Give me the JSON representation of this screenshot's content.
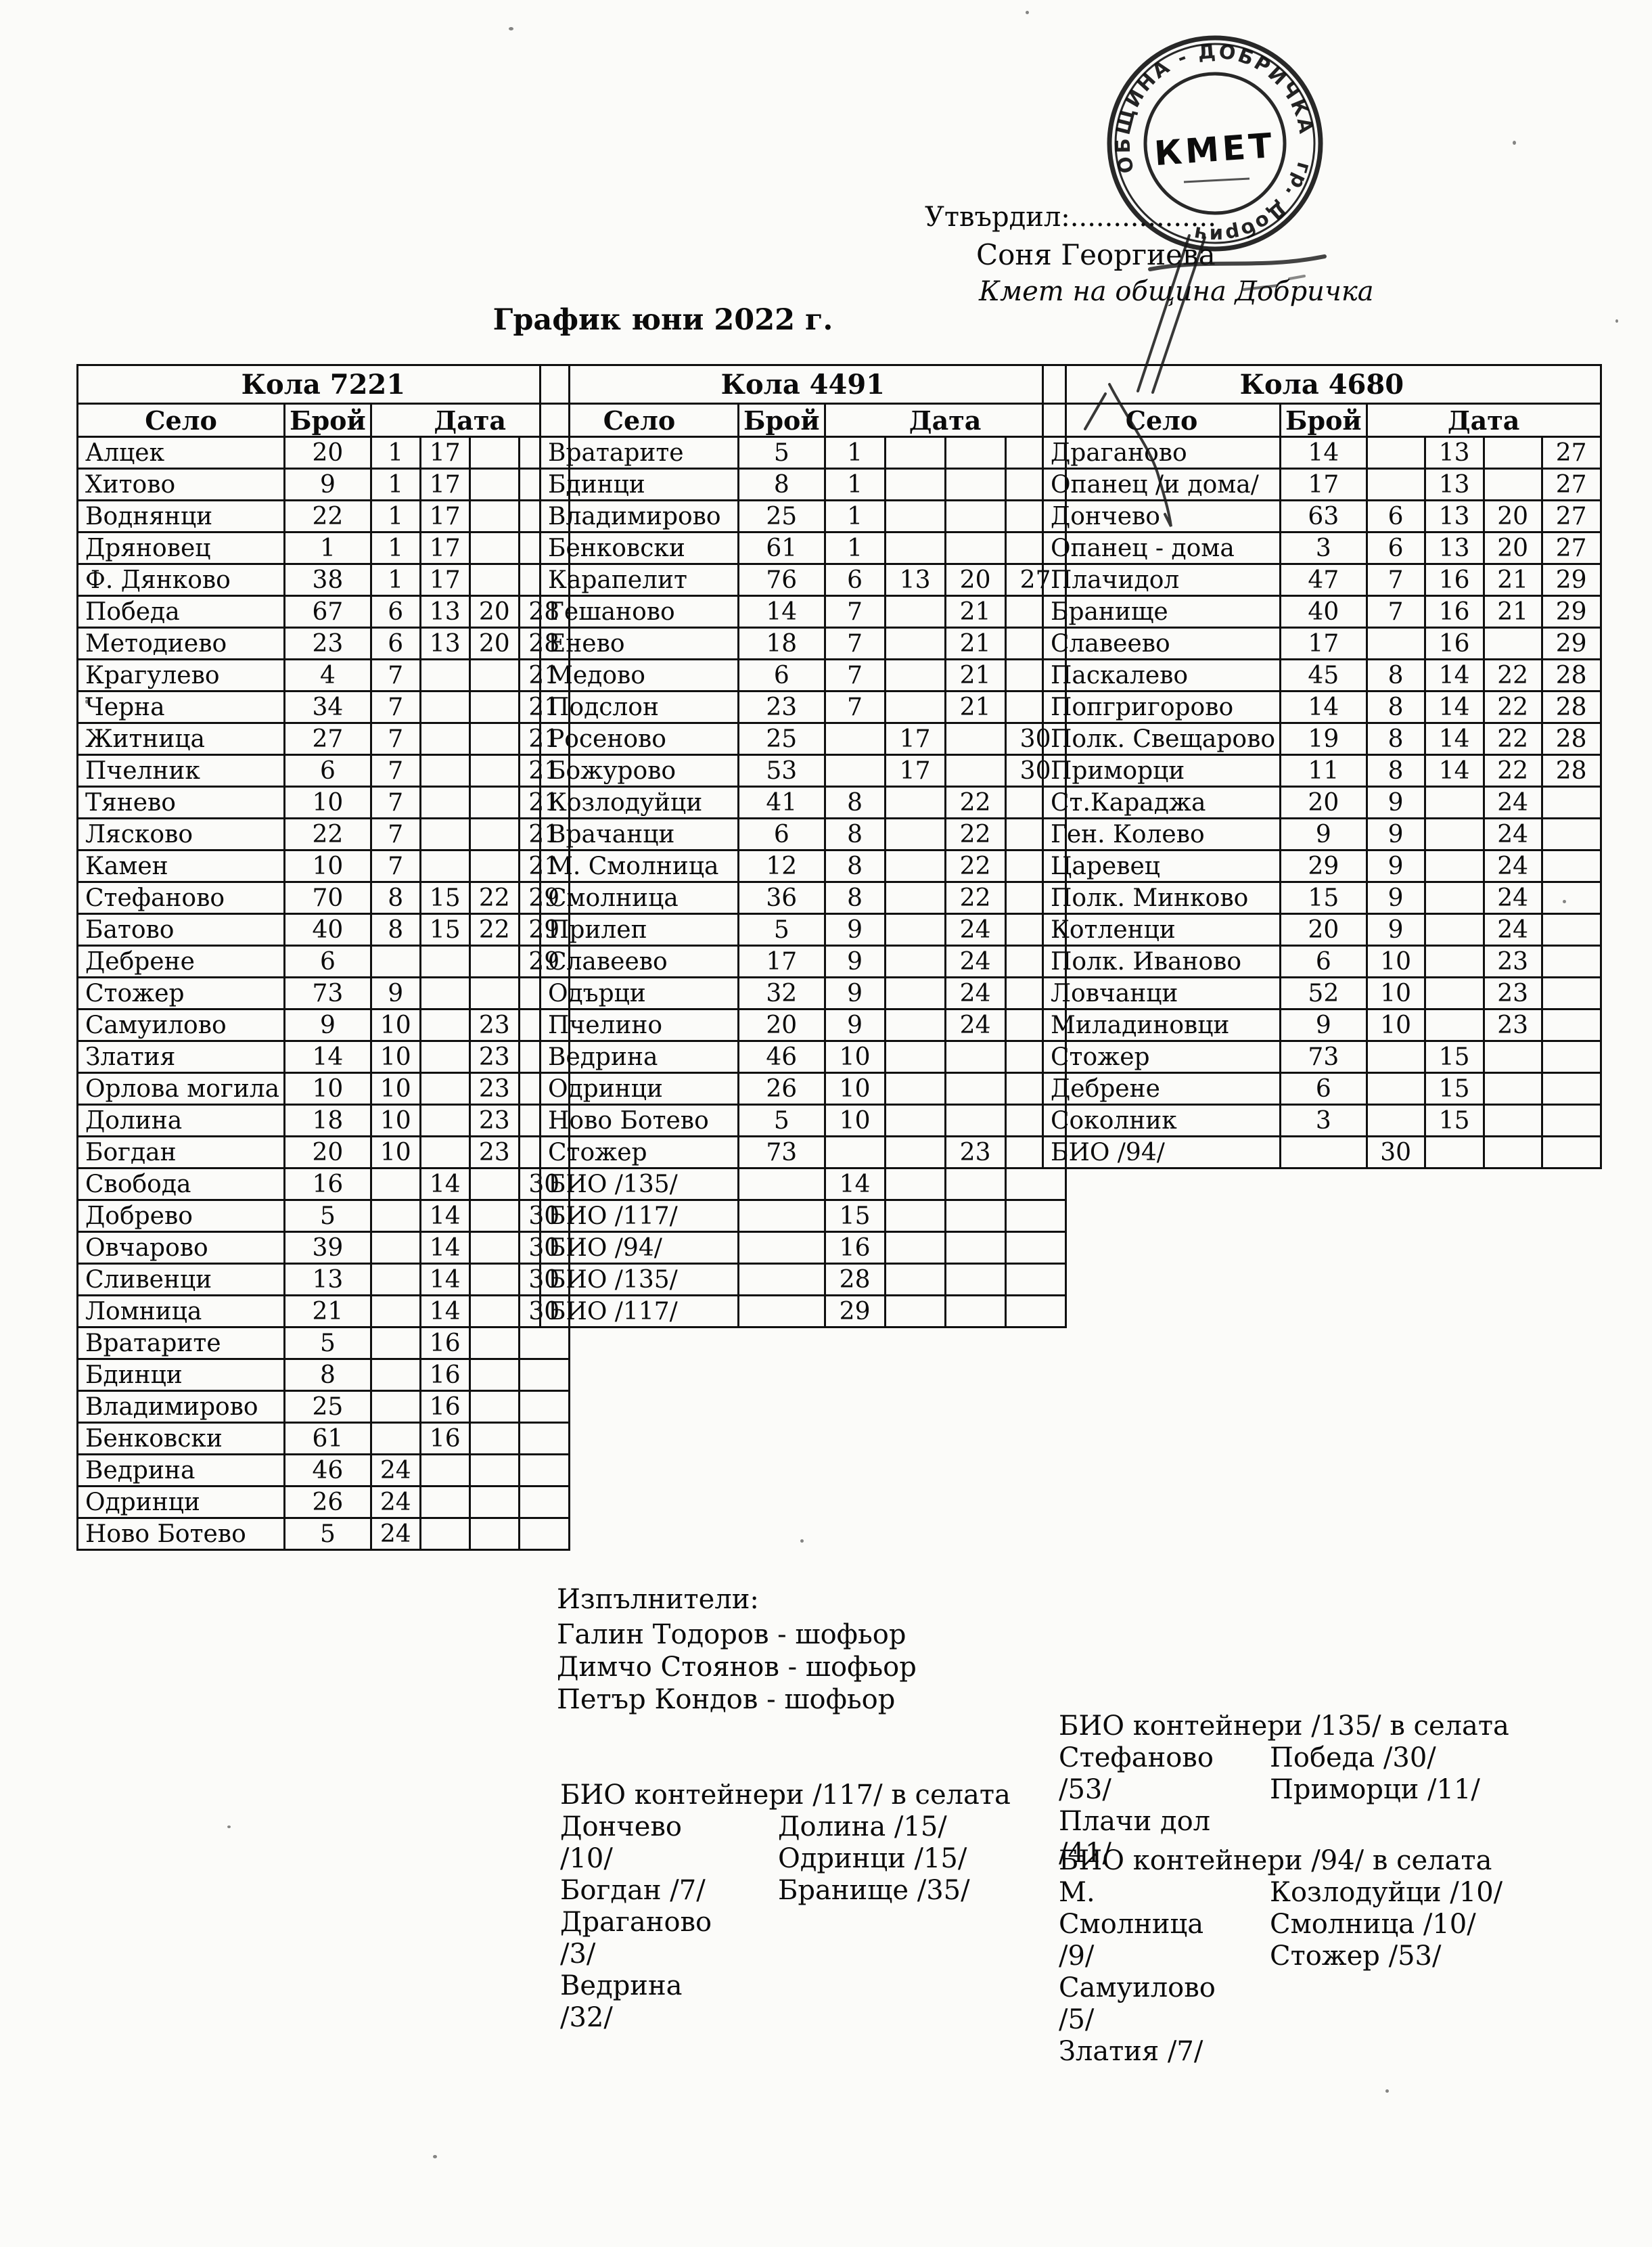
{
  "title": "График юни 2022 г.",
  "approval": {
    "label": "Утвърдил:.................",
    "name": "Соня Георгиева",
    "role": "Кмет  на община Добричка"
  },
  "stamp": {
    "ring_top": "ОБЩИНА - ДОБРИЧКА",
    "ring_bottom": "гр. Добрич",
    "center": "КМЕТ"
  },
  "column_headers": {
    "village": "Село",
    "count": "Брой",
    "date": "Дата"
  },
  "tables": [
    {
      "title": "Кола 7221",
      "rows": [
        {
          "village": "Алцек",
          "count": "20",
          "dates": [
            "1",
            "17",
            "",
            ""
          ]
        },
        {
          "village": "Хитово",
          "count": "9",
          "dates": [
            "1",
            "17",
            "",
            ""
          ]
        },
        {
          "village": "Воднянци",
          "count": "22",
          "dates": [
            "1",
            "17",
            "",
            ""
          ]
        },
        {
          "village": "Дряновец",
          "count": "1",
          "dates": [
            "1",
            "17",
            "",
            ""
          ]
        },
        {
          "village": "Ф. Дянково",
          "count": "38",
          "dates": [
            "1",
            "17",
            "",
            ""
          ]
        },
        {
          "village": "Победа",
          "count": "67",
          "dates": [
            "6",
            "13",
            "20",
            "28"
          ]
        },
        {
          "village": "Методиево",
          "count": "23",
          "dates": [
            "6",
            "13",
            "20",
            "28"
          ]
        },
        {
          "village": "Крагулево",
          "count": "4",
          "dates": [
            "7",
            "",
            "",
            "21"
          ]
        },
        {
          "village": "Черна",
          "count": "34",
          "dates": [
            "7",
            "",
            "",
            "21"
          ]
        },
        {
          "village": "Житница",
          "count": "27",
          "dates": [
            "7",
            "",
            "",
            "21"
          ]
        },
        {
          "village": "Пчелник",
          "count": "6",
          "dates": [
            "7",
            "",
            "",
            "21"
          ]
        },
        {
          "village": "Тянево",
          "count": "10",
          "dates": [
            "7",
            "",
            "",
            "21"
          ]
        },
        {
          "village": "Лясково",
          "count": "22",
          "dates": [
            "7",
            "",
            "",
            "21"
          ]
        },
        {
          "village": "Камен",
          "count": "10",
          "dates": [
            "7",
            "",
            "",
            "21"
          ]
        },
        {
          "village": "Стефаново",
          "count": "70",
          "dates": [
            "8",
            "15",
            "22",
            "29"
          ]
        },
        {
          "village": "Батово",
          "count": "40",
          "dates": [
            "8",
            "15",
            "22",
            "29"
          ]
        },
        {
          "village": "Дебрене",
          "count": "6",
          "dates": [
            "",
            "",
            "",
            "29"
          ]
        },
        {
          "village": "Стожер",
          "count": "73",
          "dates": [
            "9",
            "",
            "",
            ""
          ]
        },
        {
          "village": "Самуилово",
          "count": "9",
          "dates": [
            "10",
            "",
            "23",
            ""
          ]
        },
        {
          "village": "Златия",
          "count": "14",
          "dates": [
            "10",
            "",
            "23",
            ""
          ]
        },
        {
          "village": "Орлова могила",
          "count": "10",
          "dates": [
            "10",
            "",
            "23",
            ""
          ]
        },
        {
          "village": "Долина",
          "count": "18",
          "dates": [
            "10",
            "",
            "23",
            ""
          ]
        },
        {
          "village": "Богдан",
          "count": "20",
          "dates": [
            "10",
            "",
            "23",
            ""
          ]
        },
        {
          "village": "Свобода",
          "count": "16",
          "dates": [
            "",
            "14",
            "",
            "30"
          ]
        },
        {
          "village": "Добрево",
          "count": "5",
          "dates": [
            "",
            "14",
            "",
            "30"
          ]
        },
        {
          "village": "Овчарово",
          "count": "39",
          "dates": [
            "",
            "14",
            "",
            "30"
          ]
        },
        {
          "village": "Сливенци",
          "count": "13",
          "dates": [
            "",
            "14",
            "",
            "30"
          ]
        },
        {
          "village": "Ломница",
          "count": "21",
          "dates": [
            "",
            "14",
            "",
            "30"
          ]
        },
        {
          "village": "Вратарите",
          "count": "5",
          "dates": [
            "",
            "16",
            "",
            ""
          ]
        },
        {
          "village": "Бдинци",
          "count": "8",
          "dates": [
            "",
            "16",
            "",
            ""
          ]
        },
        {
          "village": "Владимирово",
          "count": "25",
          "dates": [
            "",
            "16",
            "",
            ""
          ]
        },
        {
          "village": "Бенковски",
          "count": "61",
          "dates": [
            "",
            "16",
            "",
            ""
          ]
        },
        {
          "village": "Ведрина",
          "count": "46",
          "dates": [
            "24",
            "",
            "",
            ""
          ]
        },
        {
          "village": "Одринци",
          "count": "26",
          "dates": [
            "24",
            "",
            "",
            ""
          ]
        },
        {
          "village": "Ново Ботево",
          "count": "5",
          "dates": [
            "24",
            "",
            "",
            ""
          ]
        }
      ]
    },
    {
      "title": "Кола 4491",
      "rows": [
        {
          "village": "Вратарите",
          "count": "5",
          "dates": [
            "1",
            "",
            "",
            ""
          ]
        },
        {
          "village": "Бдинци",
          "count": "8",
          "dates": [
            "1",
            "",
            "",
            ""
          ]
        },
        {
          "village": "Владимирово",
          "count": "25",
          "dates": [
            "1",
            "",
            "",
            ""
          ]
        },
        {
          "village": "Бенковски",
          "count": "61",
          "dates": [
            "1",
            "",
            "",
            ""
          ]
        },
        {
          "village": "Карапелит",
          "count": "76",
          "dates": [
            "6",
            "13",
            "20",
            "27"
          ]
        },
        {
          "village": "Гешаново",
          "count": "14",
          "dates": [
            "7",
            "",
            "21",
            ""
          ]
        },
        {
          "village": "Енево",
          "count": "18",
          "dates": [
            "7",
            "",
            "21",
            ""
          ]
        },
        {
          "village": "Медово",
          "count": "6",
          "dates": [
            "7",
            "",
            "21",
            ""
          ]
        },
        {
          "village": "Подслон",
          "count": "23",
          "dates": [
            "7",
            "",
            "21",
            ""
          ]
        },
        {
          "village": "Росеново",
          "count": "25",
          "dates": [
            "",
            "17",
            "",
            "30"
          ]
        },
        {
          "village": "Божурово",
          "count": "53",
          "dates": [
            "",
            "17",
            "",
            "30"
          ]
        },
        {
          "village": "Козлодуйци",
          "count": "41",
          "dates": [
            "8",
            "",
            "22",
            ""
          ]
        },
        {
          "village": "Врачанци",
          "count": "6",
          "dates": [
            "8",
            "",
            "22",
            ""
          ]
        },
        {
          "village": "М. Смолница",
          "count": "12",
          "dates": [
            "8",
            "",
            "22",
            ""
          ]
        },
        {
          "village": "Смолница",
          "count": "36",
          "dates": [
            "8",
            "",
            "22",
            ""
          ]
        },
        {
          "village": "Прилеп",
          "count": "5",
          "dates": [
            "9",
            "",
            "24",
            ""
          ]
        },
        {
          "village": "Славеево",
          "count": "17",
          "dates": [
            "9",
            "",
            "24",
            ""
          ]
        },
        {
          "village": "Одърци",
          "count": "32",
          "dates": [
            "9",
            "",
            "24",
            ""
          ]
        },
        {
          "village": "Пчелино",
          "count": "20",
          "dates": [
            "9",
            "",
            "24",
            ""
          ]
        },
        {
          "village": "Ведрина",
          "count": "46",
          "dates": [
            "10",
            "",
            "",
            ""
          ]
        },
        {
          "village": "Одринци",
          "count": "26",
          "dates": [
            "10",
            "",
            "",
            ""
          ]
        },
        {
          "village": "Ново Ботево",
          "count": "5",
          "dates": [
            "10",
            "",
            "",
            ""
          ]
        },
        {
          "village": "Стожер",
          "count": "73",
          "dates": [
            "",
            "",
            "23",
            ""
          ]
        },
        {
          "village": "БИО /135/",
          "count": "",
          "dates": [
            "14",
            "",
            "",
            ""
          ]
        },
        {
          "village": "БИО /117/",
          "count": "",
          "dates": [
            "15",
            "",
            "",
            ""
          ]
        },
        {
          "village": "БИО /94/",
          "count": "",
          "dates": [
            "16",
            "",
            "",
            ""
          ]
        },
        {
          "village": "БИО /135/",
          "count": "",
          "dates": [
            "28",
            "",
            "",
            ""
          ]
        },
        {
          "village": "БИО /117/",
          "count": "",
          "dates": [
            "29",
            "",
            "",
            ""
          ]
        }
      ]
    },
    {
      "title": "Кола 4680",
      "rows": [
        {
          "village": "Драганово",
          "count": "14",
          "dates": [
            "",
            "13",
            "",
            "27"
          ]
        },
        {
          "village": "Опанец /и дома/",
          "count": "17",
          "dates": [
            "",
            "13",
            "",
            "27"
          ]
        },
        {
          "village": "Дончево",
          "count": "63",
          "dates": [
            "6",
            "13",
            "20",
            "27"
          ]
        },
        {
          "village": "Опанец - дома",
          "count": "3",
          "dates": [
            "6",
            "13",
            "20",
            "27"
          ]
        },
        {
          "village": "Плачидол",
          "count": "47",
          "dates": [
            "7",
            "16",
            "21",
            "29"
          ]
        },
        {
          "village": "Бранище",
          "count": "40",
          "dates": [
            "7",
            "16",
            "21",
            "29"
          ]
        },
        {
          "village": "Славеево",
          "count": "17",
          "dates": [
            "",
            "16",
            "",
            "29"
          ]
        },
        {
          "village": "Паскалево",
          "count": "45",
          "dates": [
            "8",
            "14",
            "22",
            "28"
          ]
        },
        {
          "village": "Попгригорово",
          "count": "14",
          "dates": [
            "8",
            "14",
            "22",
            "28"
          ]
        },
        {
          "village": "Полк. Свещарово",
          "count": "19",
          "dates": [
            "8",
            "14",
            "22",
            "28"
          ]
        },
        {
          "village": "Приморци",
          "count": "11",
          "dates": [
            "8",
            "14",
            "22",
            "28"
          ]
        },
        {
          "village": "Ст.Караджа",
          "count": "20",
          "dates": [
            "9",
            "",
            "24",
            ""
          ]
        },
        {
          "village": "Ген. Колево",
          "count": "9",
          "dates": [
            "9",
            "",
            "24",
            ""
          ]
        },
        {
          "village": "Царевец",
          "count": "29",
          "dates": [
            "9",
            "",
            "24",
            ""
          ]
        },
        {
          "village": "Полк. Минково",
          "count": "15",
          "dates": [
            "9",
            "",
            "24",
            ""
          ]
        },
        {
          "village": "Котленци",
          "count": "20",
          "dates": [
            "9",
            "",
            "24",
            ""
          ]
        },
        {
          "village": "Полк. Иваново",
          "count": "6",
          "dates": [
            "10",
            "",
            "23",
            ""
          ]
        },
        {
          "village": "Ловчанци",
          "count": "52",
          "dates": [
            "10",
            "",
            "23",
            ""
          ]
        },
        {
          "village": "Миладиновци",
          "count": "9",
          "dates": [
            "10",
            "",
            "23",
            ""
          ]
        },
        {
          "village": "Стожер",
          "count": "73",
          "dates": [
            "",
            "15",
            "",
            ""
          ]
        },
        {
          "village": "Дебрене",
          "count": "6",
          "dates": [
            "",
            "15",
            "",
            ""
          ]
        },
        {
          "village": "Соколник",
          "count": "3",
          "dates": [
            "",
            "15",
            "",
            ""
          ]
        },
        {
          "village": "БИО /94/",
          "count": "",
          "dates": [
            "30",
            "",
            "",
            ""
          ]
        }
      ]
    }
  ],
  "executors": {
    "heading": "Изпълнители:",
    "drivers": [
      "Галин Тодоров - шофьор",
      "Димчо Стоянов - шофьор",
      "Петър Кондов - шофьор"
    ]
  },
  "bio_blocks": [
    {
      "heading": "БИО контейнери /135/ в селата",
      "left": [
        "Стефаново /53/",
        "Плачи дол /41/"
      ],
      "right": [
        "Победа /30/",
        "Приморци /11/"
      ]
    },
    {
      "heading": "БИО контейнери /117/ в селата",
      "left": [
        "Дончево /10/",
        "Богдан /7/",
        "Драганово /3/",
        "Ведрина /32/"
      ],
      "right": [
        "Долина /15/",
        "Одринци /15/",
        "Бранище /35/"
      ]
    },
    {
      "heading": "БИО контейнери /94/ в селата",
      "left": [
        "М. Смолница /9/",
        "Самуилово /5/",
        "Златия /7/"
      ],
      "right": [
        "Козлодуйци /10/",
        "Смолница /10/",
        "Стожер /53/"
      ]
    }
  ]
}
